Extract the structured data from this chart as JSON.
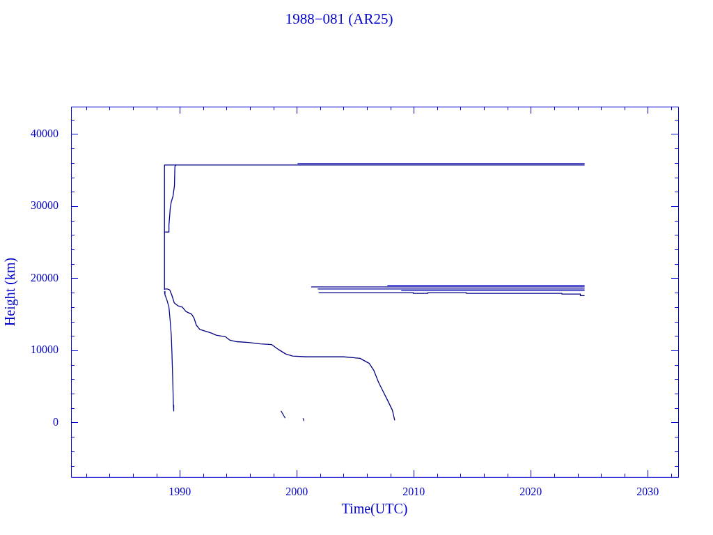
{
  "chart_data": {
    "type": "line",
    "title": "1988−081 (AR25)",
    "xlabel": "Time(UTC)",
    "ylabel": "Height (km)",
    "grid": false,
    "legend": false,
    "marker": "none",
    "xlim": [
      1980.7,
      2032.6
    ],
    "ylim": [
      -7570,
      43790
    ],
    "xticks": [
      {
        "value": 1982,
        "label": null
      },
      {
        "value": 1984,
        "label": null
      },
      {
        "value": 1986,
        "label": null
      },
      {
        "value": 1988,
        "label": null
      },
      1990,
      {
        "value": 1992,
        "label": null
      },
      {
        "value": 1994,
        "label": null
      },
      {
        "value": 1996,
        "label": null
      },
      {
        "value": 1998,
        "label": null
      },
      2000,
      {
        "value": 2002,
        "label": null
      },
      {
        "value": 2004,
        "label": null
      },
      {
        "value": 2006,
        "label": null
      },
      {
        "value": 2008,
        "label": null
      },
      2010,
      {
        "value": 2012,
        "label": null
      },
      {
        "value": 2014,
        "label": null
      },
      {
        "value": 2016,
        "label": null
      },
      {
        "value": 2018,
        "label": null
      },
      2020,
      {
        "value": 2022,
        "label": null
      },
      {
        "value": 2024,
        "label": null
      },
      {
        "value": 2026,
        "label": null
      },
      {
        "value": 2028,
        "label": null
      },
      2030,
      {
        "value": 2032,
        "label": null
      }
    ],
    "yticks": [
      {
        "value": -6000,
        "label": null
      },
      {
        "value": -4000,
        "label": null
      },
      {
        "value": -2000,
        "label": null
      },
      0,
      {
        "value": 2000,
        "label": null
      },
      {
        "value": 4000,
        "label": null
      },
      {
        "value": 6000,
        "label": null
      },
      {
        "value": 8000,
        "label": null
      },
      10000,
      {
        "value": 12000,
        "label": null
      },
      {
        "value": 14000,
        "label": null
      },
      {
        "value": 16000,
        "label": null
      },
      {
        "value": 18000,
        "label": null
      },
      20000,
      {
        "value": 22000,
        "label": null
      },
      {
        "value": 24000,
        "label": null
      },
      {
        "value": 26000,
        "label": null
      },
      {
        "value": 28000,
        "label": null
      },
      30000,
      {
        "value": 32000,
        "label": null
      },
      {
        "value": 34000,
        "label": null
      },
      {
        "value": 36000,
        "label": null
      },
      {
        "value": 38000,
        "label": null
      },
      40000,
      {
        "value": 42000,
        "label": null
      }
    ],
    "series": [
      {
        "color": "#00008b",
        "x": [
          1988.69,
          1988.69,
          2024.6
        ],
        "values": [
          18400,
          35700,
          35700
        ]
      },
      {
        "color": "#0000a8",
        "x": [
          2000.06,
          2024.6
        ],
        "values": [
          35900,
          35900
        ]
      },
      {
        "color": "#000096",
        "x": [
          1988.69,
          1989.07,
          1989.07,
          1989.13,
          1989.18,
          1989.27,
          1989.42,
          1989.54,
          1989.58,
          1989.66,
          1989.7
        ],
        "values": [
          26400,
          26400,
          27400,
          28600,
          29700,
          30600,
          31400,
          32800,
          35500,
          35700,
          35700
        ]
      },
      {
        "color": "#0a0a90",
        "x": [
          1988.69,
          1988.73,
          1988.83,
          1988.93,
          1989.07,
          1989.18,
          1989.27,
          1989.33,
          1989.39,
          1989.45,
          1989.48
        ],
        "values": [
          18200,
          17700,
          17300,
          16800,
          16000,
          14000,
          12100,
          9500,
          6200,
          2400,
          1600
        ]
      },
      {
        "color": "#000080",
        "x": [
          1988.69,
          1988.93,
          1989.13,
          1989.33,
          1989.52,
          1989.82,
          1990.22,
          1990.52,
          1991.01,
          1991.21,
          1991.41,
          1991.71,
          1992.7,
          1993.1,
          1993.89,
          1994.29,
          1994.88,
          1995.88,
          1996.86,
          1997.86,
          1998.45,
          1999.05,
          1999.64,
          2000.83,
          2004.01,
          2005.4,
          2006.19,
          2006.59,
          2006.98,
          2007.38,
          2007.78,
          2008.17,
          2008.37
        ],
        "values": [
          18500,
          18500,
          18400,
          17600,
          16600,
          16200,
          16000,
          15400,
          15000,
          14500,
          13500,
          12900,
          12400,
          12100,
          11900,
          11400,
          11200,
          11100,
          10900,
          10800,
          10100,
          9500,
          9200,
          9100,
          9100,
          8900,
          8200,
          7200,
          5600,
          4300,
          3000,
          1700,
          300
        ]
      },
      {
        "color": "#14148c",
        "x": [
          1998.65,
          1999.01
        ],
        "values": [
          1600,
          600
        ]
      },
      {
        "color": "#1e1e96",
        "x": [
          2000.54,
          2000.6
        ],
        "values": [
          600,
          200
        ]
      },
      {
        "color": "#000092",
        "x": [
          2001.23,
          2024.6
        ],
        "values": [
          18800,
          18800
        ]
      },
      {
        "color": "#0000cc",
        "x": [
          2007.74,
          2024.6
        ],
        "values": [
          19000,
          19000
        ]
      },
      {
        "color": "#00009e",
        "x": [
          2001.79,
          2024.6
        ],
        "values": [
          18500,
          18500
        ]
      },
      {
        "color": "#0000b4",
        "x": [
          2008.93,
          2024.6
        ],
        "values": [
          18300,
          18300
        ]
      },
      {
        "color": "#000086",
        "x": [
          2001.87,
          2009.96,
          2009.96,
          2011.2,
          2011.2,
          2014.5,
          2014.5,
          2022.66,
          2022.66,
          2024.24,
          2024.24,
          2024.6
        ],
        "values": [
          18000,
          18000,
          17900,
          17900,
          18000,
          18000,
          17900,
          17900,
          17800,
          17800,
          17600,
          17600
        ]
      }
    ]
  }
}
